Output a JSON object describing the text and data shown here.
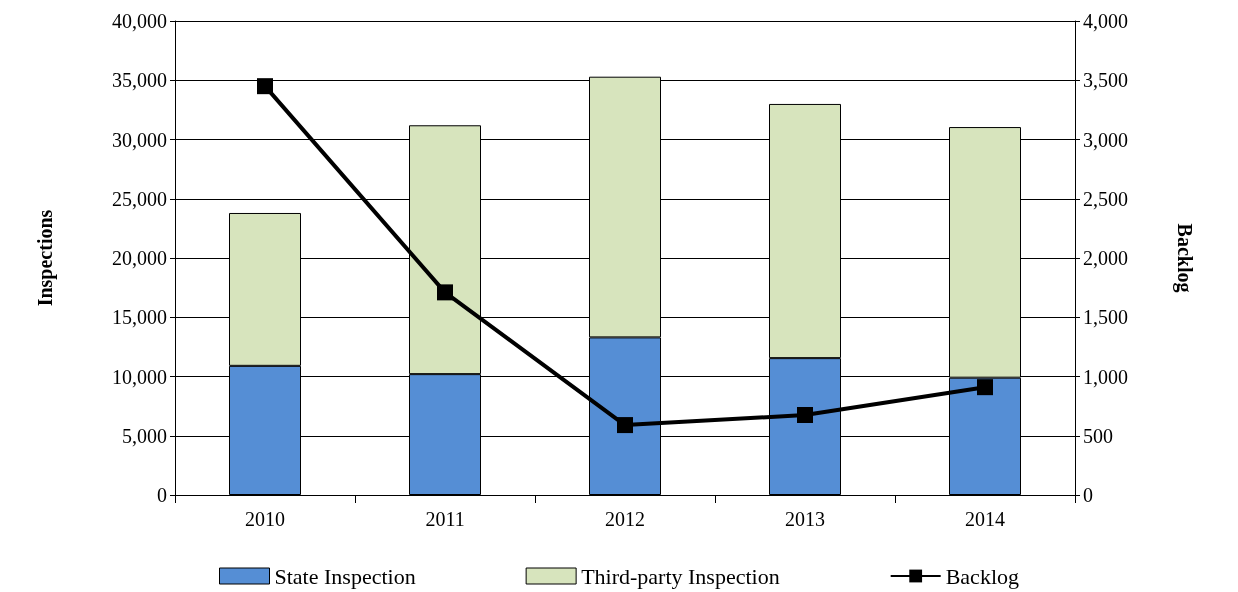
{
  "chart_data": {
    "type": "bar",
    "stacked": true,
    "categories": [
      "2010",
      "2011",
      "2012",
      "2013",
      "2014"
    ],
    "ylabel": "Inspections",
    "y2label": "Backlog",
    "ylim": [
      0,
      40000
    ],
    "yticks": [
      {
        "value": 0,
        "label": "0"
      },
      {
        "value": 5000,
        "label": "5,000"
      },
      {
        "value": 10000,
        "label": "10,000"
      },
      {
        "value": 15000,
        "label": "15,000"
      },
      {
        "value": 20000,
        "label": "20,000"
      },
      {
        "value": 25000,
        "label": "25,000"
      },
      {
        "value": 30000,
        "label": "30,000"
      },
      {
        "value": 35000,
        "label": "35,000"
      },
      {
        "value": 40000,
        "label": "40,000"
      }
    ],
    "y2lim": [
      0,
      4000
    ],
    "y2ticks": [
      {
        "value": 0,
        "label": "0"
      },
      {
        "value": 500,
        "label": "500"
      },
      {
        "value": 1000,
        "label": "1,000"
      },
      {
        "value": 1500,
        "label": "1,500"
      },
      {
        "value": 2000,
        "label": "2,000"
      },
      {
        "value": 2500,
        "label": "2,500"
      },
      {
        "value": 3000,
        "label": "3,000"
      },
      {
        "value": 3500,
        "label": "3,500"
      },
      {
        "value": 4000,
        "label": "4,000"
      }
    ],
    "series": [
      {
        "name": "State Inspection",
        "color": "#558ed5",
        "values": [
          10900,
          10200,
          13300,
          11550,
          9900
        ]
      },
      {
        "name": "Third-party Inspection",
        "color": "#d7e4bd",
        "values": [
          12900,
          21000,
          22000,
          21450,
          21150
        ]
      },
      {
        "type": "line",
        "axis": "y2",
        "name": "Backlog",
        "color": "#000000",
        "marker": "square",
        "line_style": "solid",
        "values": [
          3450,
          1710,
          590,
          675,
          910
        ]
      }
    ],
    "grid": "y",
    "legend": "bottom"
  }
}
